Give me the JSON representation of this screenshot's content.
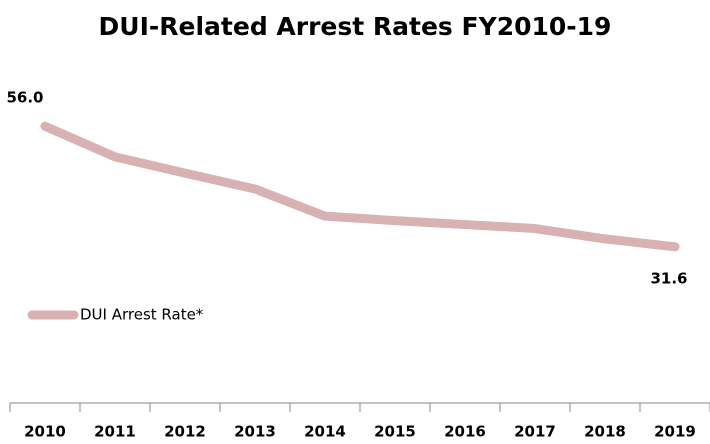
{
  "chart_data": {
    "type": "line",
    "title": "DUI-Related Arrest Rates FY2010-19",
    "categories": [
      "2010",
      "2011",
      "2012",
      "2013",
      "2014",
      "2015",
      "2016",
      "2017",
      "2018",
      "2019"
    ],
    "series": [
      {
        "name": "DUI Arrest Rate*",
        "color": "#d8b2b2",
        "values": [
          56.0,
          49.8,
          46.5,
          43.3,
          37.8,
          36.9,
          36.1,
          35.3,
          33.2,
          31.6
        ],
        "value_labels": [
          "56.0",
          null,
          null,
          null,
          null,
          null,
          null,
          null,
          null,
          "31.6"
        ]
      }
    ],
    "ylim": [
      0,
      70
    ],
    "legend": "left"
  }
}
